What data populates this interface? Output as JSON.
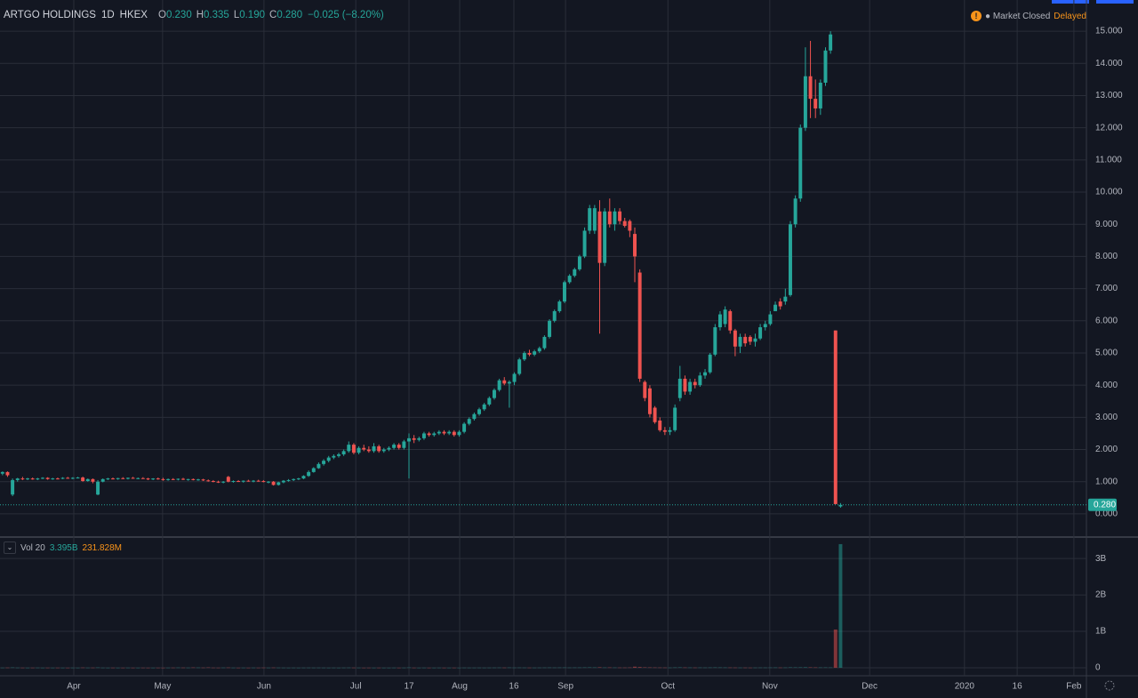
{
  "chart_data": {
    "type": "candlestick",
    "symbol": "ARTGO HOLDINGS",
    "interval": "1D",
    "exchange": "HKEX",
    "ohlc_legend": [
      {
        "key": "O",
        "value": "0.230"
      },
      {
        "key": "H",
        "value": "0.335"
      },
      {
        "key": "L",
        "value": "0.190"
      },
      {
        "key": "C",
        "value": "0.280"
      }
    ],
    "change": "−0.025 (−8.20%)",
    "status": "Market Closed",
    "feed": "Delayed",
    "up_color": "#26a69a",
    "down_color": "#ef5350",
    "grid": true,
    "ohlc": [
      [
        1.25,
        1.32,
        1.2,
        1.3
      ],
      [
        1.3,
        1.32,
        1.15,
        1.2
      ],
      [
        0.6,
        1.1,
        0.55,
        1.05
      ],
      [
        1.05,
        1.12,
        1.0,
        1.1
      ],
      [
        1.1,
        1.15,
        1.05,
        1.08
      ],
      [
        1.08,
        1.12,
        1.05,
        1.1
      ],
      [
        1.1,
        1.13,
        1.06,
        1.07
      ],
      [
        1.07,
        1.12,
        1.05,
        1.1
      ],
      [
        1.1,
        1.14,
        1.08,
        1.12
      ],
      [
        1.12,
        1.14,
        1.06,
        1.08
      ],
      [
        1.08,
        1.12,
        1.06,
        1.1
      ],
      [
        1.1,
        1.13,
        1.07,
        1.09
      ],
      [
        1.09,
        1.14,
        1.08,
        1.12
      ],
      [
        1.12,
        1.15,
        1.09,
        1.1
      ],
      [
        1.1,
        1.14,
        1.08,
        1.12
      ],
      [
        1.12,
        1.15,
        1.1,
        1.13
      ],
      [
        1.13,
        1.16,
        1.0,
        1.02
      ],
      [
        1.02,
        1.1,
        1.0,
        1.08
      ],
      [
        1.08,
        1.1,
        0.95,
        1.0
      ],
      [
        0.6,
        1.05,
        0.58,
        1.0
      ],
      [
        1.0,
        1.1,
        0.98,
        1.08
      ],
      [
        1.08,
        1.12,
        1.05,
        1.1
      ],
      [
        1.1,
        1.13,
        1.07,
        1.08
      ],
      [
        1.08,
        1.12,
        1.06,
        1.11
      ],
      [
        1.11,
        1.14,
        1.08,
        1.09
      ],
      [
        1.09,
        1.13,
        1.07,
        1.12
      ],
      [
        1.12,
        1.15,
        1.09,
        1.1
      ],
      [
        1.1,
        1.13,
        1.08,
        1.11
      ],
      [
        1.11,
        1.14,
        1.09,
        1.1
      ],
      [
        1.1,
        1.12,
        1.05,
        1.07
      ],
      [
        1.07,
        1.11,
        1.05,
        1.1
      ],
      [
        1.1,
        1.13,
        1.06,
        1.08
      ],
      [
        1.08,
        1.12,
        1.03,
        1.05
      ],
      [
        1.05,
        1.1,
        1.03,
        1.08
      ],
      [
        1.08,
        1.11,
        1.05,
        1.07
      ],
      [
        1.07,
        1.1,
        1.04,
        1.09
      ],
      [
        1.09,
        1.12,
        1.05,
        1.06
      ],
      [
        1.06,
        1.09,
        1.03,
        1.08
      ],
      [
        1.08,
        1.1,
        1.04,
        1.05
      ],
      [
        1.05,
        1.09,
        1.03,
        1.07
      ],
      [
        1.07,
        1.09,
        1.02,
        1.04
      ],
      [
        1.04,
        1.07,
        1.0,
        1.02
      ],
      [
        1.02,
        1.05,
        0.98,
        1.0
      ],
      [
        1.0,
        1.03,
        0.96,
        0.98
      ],
      [
        0.98,
        1.02,
        0.95,
        1.0
      ],
      [
        1.15,
        1.18,
        0.98,
        1.0
      ],
      [
        1.0,
        1.04,
        0.97,
        1.02
      ],
      [
        1.02,
        1.05,
        0.99,
        1.0
      ],
      [
        1.0,
        1.04,
        0.97,
        1.03
      ],
      [
        1.03,
        1.06,
        1.0,
        1.01
      ],
      [
        1.01,
        1.05,
        0.98,
        1.03
      ],
      [
        1.03,
        1.06,
        1.0,
        1.02
      ],
      [
        1.02,
        1.05,
        0.98,
        0.99
      ],
      [
        0.99,
        1.02,
        0.95,
        1.0
      ],
      [
        1.0,
        1.02,
        0.88,
        0.9
      ],
      [
        0.9,
        1.0,
        0.88,
        0.98
      ],
      [
        0.98,
        1.05,
        0.95,
        1.03
      ],
      [
        1.03,
        1.08,
        1.0,
        1.05
      ],
      [
        1.05,
        1.1,
        1.02,
        1.08
      ],
      [
        1.08,
        1.12,
        1.05,
        1.1
      ],
      [
        1.1,
        1.2,
        1.08,
        1.18
      ],
      [
        1.18,
        1.35,
        1.15,
        1.3
      ],
      [
        1.3,
        1.45,
        1.28,
        1.42
      ],
      [
        1.42,
        1.6,
        1.4,
        1.55
      ],
      [
        1.55,
        1.7,
        1.5,
        1.65
      ],
      [
        1.65,
        1.8,
        1.6,
        1.75
      ],
      [
        1.75,
        1.85,
        1.7,
        1.8
      ],
      [
        1.8,
        1.9,
        1.75,
        1.85
      ],
      [
        1.85,
        2.0,
        1.8,
        1.95
      ],
      [
        1.95,
        2.25,
        1.9,
        2.15
      ],
      [
        2.15,
        2.2,
        1.85,
        1.9
      ],
      [
        1.9,
        2.1,
        1.85,
        2.05
      ],
      [
        2.05,
        2.15,
        1.95,
        2.0
      ],
      [
        2.0,
        2.1,
        1.9,
        1.95
      ],
      [
        1.95,
        2.2,
        1.9,
        2.1
      ],
      [
        2.1,
        2.15,
        1.9,
        1.95
      ],
      [
        1.95,
        2.05,
        1.9,
        2.0
      ],
      [
        2.0,
        2.1,
        1.95,
        2.05
      ],
      [
        2.05,
        2.2,
        2.0,
        2.15
      ],
      [
        2.15,
        2.2,
        2.0,
        2.05
      ],
      [
        2.05,
        2.3,
        2.0,
        2.25
      ],
      [
        2.25,
        2.5,
        1.1,
        2.35
      ],
      [
        2.35,
        2.45,
        2.2,
        2.3
      ],
      [
        2.3,
        2.4,
        2.25,
        2.35
      ],
      [
        2.35,
        2.55,
        2.3,
        2.5
      ],
      [
        2.5,
        2.55,
        2.4,
        2.45
      ],
      [
        2.45,
        2.55,
        2.4,
        2.5
      ],
      [
        2.5,
        2.6,
        2.45,
        2.55
      ],
      [
        2.55,
        2.6,
        2.45,
        2.5
      ],
      [
        2.5,
        2.6,
        2.45,
        2.55
      ],
      [
        2.55,
        2.6,
        2.4,
        2.45
      ],
      [
        2.45,
        2.6,
        2.4,
        2.55
      ],
      [
        2.55,
        2.85,
        2.5,
        2.8
      ],
      [
        2.8,
        3.0,
        2.75,
        2.95
      ],
      [
        2.95,
        3.15,
        2.9,
        3.1
      ],
      [
        3.1,
        3.3,
        3.05,
        3.25
      ],
      [
        3.25,
        3.45,
        3.2,
        3.4
      ],
      [
        3.4,
        3.65,
        3.35,
        3.6
      ],
      [
        3.6,
        3.9,
        3.55,
        3.85
      ],
      [
        3.85,
        4.2,
        3.8,
        4.15
      ],
      [
        4.15,
        4.25,
        4.0,
        4.05
      ],
      [
        4.05,
        4.15,
        3.3,
        4.1
      ],
      [
        4.1,
        4.4,
        4.0,
        4.35
      ],
      [
        4.35,
        4.85,
        4.3,
        4.8
      ],
      [
        4.8,
        5.05,
        4.75,
        5.0
      ],
      [
        5.0,
        5.1,
        4.9,
        4.95
      ],
      [
        4.95,
        5.1,
        4.9,
        5.05
      ],
      [
        5.05,
        5.2,
        5.0,
        5.15
      ],
      [
        5.15,
        5.55,
        5.1,
        5.5
      ],
      [
        5.5,
        6.05,
        5.45,
        6.0
      ],
      [
        6.0,
        6.35,
        5.95,
        6.3
      ],
      [
        6.3,
        6.65,
        6.25,
        6.6
      ],
      [
        6.6,
        7.25,
        6.55,
        7.2
      ],
      [
        7.2,
        7.45,
        7.15,
        7.4
      ],
      [
        7.4,
        7.65,
        7.35,
        7.6
      ],
      [
        7.6,
        8.05,
        7.55,
        8.0
      ],
      [
        8.0,
        8.9,
        7.95,
        8.8
      ],
      [
        8.8,
        9.6,
        8.7,
        9.5
      ],
      [
        8.8,
        9.6,
        8.7,
        9.5
      ],
      [
        9.4,
        9.75,
        5.6,
        7.8
      ],
      [
        7.8,
        9.5,
        7.7,
        9.4
      ],
      [
        9.4,
        9.8,
        8.9,
        9.0
      ],
      [
        9.0,
        9.5,
        8.8,
        9.4
      ],
      [
        9.4,
        9.5,
        9.0,
        9.1
      ],
      [
        9.1,
        9.2,
        8.9,
        8.95
      ],
      [
        9.1,
        9.15,
        8.6,
        8.8
      ],
      [
        8.7,
        8.9,
        7.2,
        8.0
      ],
      [
        7.5,
        7.6,
        4.1,
        4.2
      ],
      [
        4.1,
        4.15,
        3.5,
        3.6
      ],
      [
        3.9,
        4.0,
        3.0,
        3.1
      ],
      [
        3.3,
        3.35,
        2.8,
        2.85
      ],
      [
        2.9,
        3.0,
        2.55,
        2.6
      ],
      [
        2.6,
        2.7,
        2.45,
        2.55
      ],
      [
        2.55,
        2.7,
        2.45,
        2.6
      ],
      [
        2.6,
        3.4,
        2.55,
        3.3
      ],
      [
        3.6,
        4.6,
        3.5,
        4.2
      ],
      [
        4.2,
        4.3,
        3.7,
        3.8
      ],
      [
        3.8,
        4.2,
        3.7,
        4.1
      ],
      [
        4.1,
        4.2,
        3.9,
        4.0
      ],
      [
        4.0,
        4.4,
        3.95,
        4.3
      ],
      [
        4.3,
        4.5,
        4.2,
        4.4
      ],
      [
        4.4,
        5.0,
        4.35,
        4.95
      ],
      [
        4.95,
        5.9,
        4.9,
        5.8
      ],
      [
        5.8,
        6.3,
        5.7,
        6.2
      ],
      [
        5.9,
        6.45,
        5.8,
        6.35
      ],
      [
        6.3,
        6.35,
        5.6,
        5.7
      ],
      [
        5.7,
        5.75,
        4.9,
        5.2
      ],
      [
        5.2,
        5.6,
        5.0,
        5.5
      ],
      [
        5.5,
        5.6,
        5.2,
        5.3
      ],
      [
        5.5,
        5.55,
        5.25,
        5.35
      ],
      [
        5.35,
        5.6,
        5.2,
        5.45
      ],
      [
        5.45,
        5.9,
        5.4,
        5.8
      ],
      [
        5.8,
        6.0,
        5.7,
        5.9
      ],
      [
        5.9,
        6.3,
        5.85,
        6.2
      ],
      [
        6.3,
        6.6,
        6.3,
        6.5
      ],
      [
        6.6,
        6.7,
        6.35,
        6.45
      ],
      [
        6.6,
        7.0,
        6.5,
        6.75
      ],
      [
        6.8,
        9.1,
        6.75,
        9.0
      ],
      [
        9.0,
        9.9,
        8.9,
        9.8
      ],
      [
        9.8,
        12.1,
        9.7,
        12.0
      ],
      [
        12.0,
        14.5,
        11.9,
        13.6
      ],
      [
        13.6,
        14.7,
        12.3,
        12.9
      ],
      [
        12.9,
        13.5,
        12.3,
        12.6
      ],
      [
        12.6,
        13.5,
        12.4,
        13.4
      ],
      [
        13.4,
        14.5,
        13.3,
        14.4
      ],
      [
        14.4,
        15.0,
        14.3,
        14.9
      ],
      [
        5.7,
        5.7,
        0.3,
        0.305
      ],
      [
        0.23,
        0.335,
        0.19,
        0.28
      ]
    ],
    "xlim": [
      -0.5,
      216
    ],
    "xticks": [
      {
        "value": 14.2,
        "label": "Apr"
      },
      {
        "value": 31.9,
        "label": "May"
      },
      {
        "value": 52.1,
        "label": "Jun"
      },
      {
        "value": 70.4,
        "label": "Jul"
      },
      {
        "value": 81,
        "label": "17"
      },
      {
        "value": 91.1,
        "label": "Aug"
      },
      {
        "value": 101.9,
        "label": "16"
      },
      {
        "value": 112.2,
        "label": "Sep"
      },
      {
        "value": 132.6,
        "label": "Oct"
      },
      {
        "value": 152.9,
        "label": "Nov"
      },
      {
        "value": 172.8,
        "label": "Dec"
      },
      {
        "value": 191.7,
        "label": "2020"
      },
      {
        "value": 202.2,
        "label": "16"
      },
      {
        "value": 213.5,
        "label": "Feb"
      }
    ],
    "ylim": [
      -0.61,
      15.97
    ],
    "yticks": [
      {
        "value": 0,
        "label": "0.000"
      },
      {
        "value": 1,
        "label": "1.000"
      },
      {
        "value": 2,
        "label": "2.000"
      },
      {
        "value": 3,
        "label": "3.000"
      },
      {
        "value": 4,
        "label": "4.000"
      },
      {
        "value": 5,
        "label": "5.000"
      },
      {
        "value": 6,
        "label": "6.000"
      },
      {
        "value": 7,
        "label": "7.000"
      },
      {
        "value": 8,
        "label": "8.000"
      },
      {
        "value": 9,
        "label": "9.000"
      },
      {
        "value": 10,
        "label": "10.000"
      },
      {
        "value": 11,
        "label": "11.000"
      },
      {
        "value": 12,
        "label": "12.000"
      },
      {
        "value": 13,
        "label": "13.000"
      },
      {
        "value": 14,
        "label": "14.000"
      },
      {
        "value": 15,
        "label": "15.000"
      }
    ],
    "last_price": {
      "value": 0.28,
      "label": "0.280"
    },
    "volume": {
      "name": "Vol 20",
      "last": "3.395B",
      "ma": "231.828M",
      "values": [
        3000000.0,
        5000000.0,
        9000000.0,
        4000000.0,
        3000000.0,
        2000000.0,
        3000000.0,
        4000000.0,
        2000000.0,
        3000000.0,
        2000000.0,
        3000000.0,
        2000000.0,
        2000000.0,
        3000000.0,
        2000000.0,
        6000000.0,
        3000000.0,
        4000000.0,
        8000000.0,
        3000000.0,
        2000000.0,
        3000000.0,
        2000000.0,
        2000000.0,
        3000000.0,
        2000000.0,
        2000000.0,
        3000000.0,
        2000000.0,
        2000000.0,
        3000000.0,
        2000000.0,
        3000000.0,
        4000000.0,
        6000000.0,
        5000000.0,
        4000000.0,
        8000000.0,
        6000000.0,
        5000000.0,
        9000000.0,
        4000000.0,
        3000000.0,
        5000000.0,
        7000000.0,
        3000000.0,
        2000000.0,
        3000000.0,
        2000000.0,
        4000000.0,
        3000000.0,
        5000000.0,
        3000000.0,
        6000000.0,
        4000000.0,
        3000000.0,
        2000000.0,
        3000000.0,
        2000000.0,
        3000000.0,
        4000000.0,
        3000000.0,
        4000000.0,
        3000000.0,
        2000000.0,
        3000000.0,
        2000000.0,
        4000000.0,
        5000000.0,
        4000000.0,
        3000000.0,
        2000000.0,
        3000000.0,
        2000000.0,
        3000000.0,
        2000000.0,
        2000000.0,
        3000000.0,
        2000000.0,
        3000000.0,
        8000000.0,
        3000000.0,
        2000000.0,
        3000000.0,
        2000000.0,
        2000000.0,
        3000000.0,
        2000000.0,
        2000000.0,
        3000000.0,
        2000000.0,
        4000000.0,
        3000000.0,
        3000000.0,
        4000000.0,
        3000000.0,
        4000000.0,
        5000000.0,
        6000000.0,
        5000000.0,
        7000000.0,
        5000000.0,
        6000000.0,
        5000000.0,
        4000000.0,
        4000000.0,
        5000000.0,
        6000000.0,
        7000000.0,
        6000000.0,
        7000000.0,
        8000000.0,
        6000000.0,
        7000000.0,
        8000000.0,
        10000000.0,
        12000000.0,
        10000000.0,
        14000000.0,
        8000000.0,
        9000000.0,
        7000000.0,
        6000000.0,
        6000000.0,
        8000000.0,
        30000000.0,
        20000000.0,
        12000000.0,
        10000000.0,
        8000000.0,
        7000000.0,
        6000000.0,
        5000000.0,
        9000000.0,
        12000000.0,
        8000000.0,
        7000000.0,
        6000000.0,
        7000000.0,
        6000000.0,
        8000000.0,
        10000000.0,
        9000000.0,
        8000000.0,
        7000000.0,
        6000000.0,
        5000000.0,
        5000000.0,
        4000000.0,
        5000000.0,
        6000000.0,
        6000000.0,
        7000000.0,
        8000000.0,
        6000000.0,
        7000000.0,
        12000000.0,
        11000000.0,
        13000000.0,
        15000000.0,
        12000000.0,
        10000000.0,
        9000000.0,
        10000000.0,
        9000000.0,
        1050000000.0,
        3395000000
      ],
      "ylim": [
        -220000000,
        3540000000
      ],
      "yticks": [
        0,
        {
          "value": 1000000000,
          "label": "1B"
        },
        {
          "value": 2000000000,
          "label": "2B"
        },
        {
          "value": 3000000000,
          "label": "3B"
        }
      ]
    }
  }
}
